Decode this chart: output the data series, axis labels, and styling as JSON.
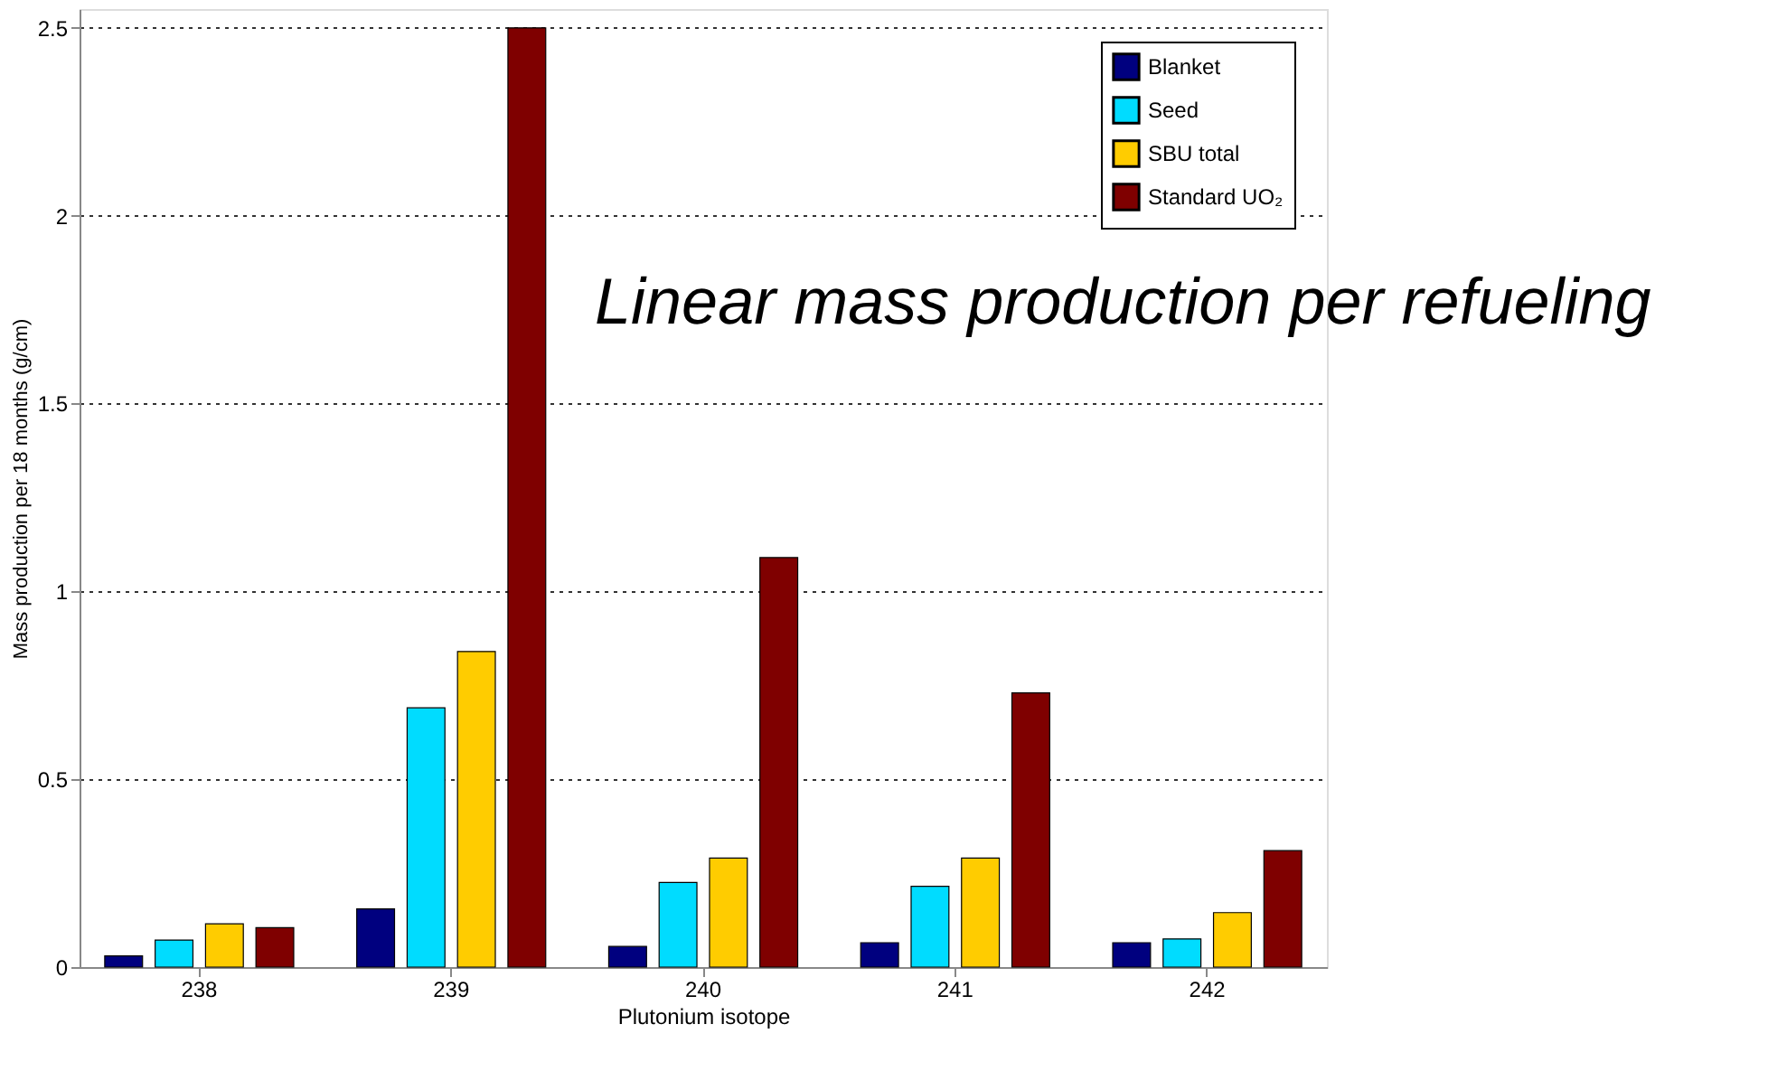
{
  "chart_data": {
    "type": "bar",
    "xlabel": "Plutonium isotope",
    "ylabel": "Mass production per 18 months (g/cm)",
    "categories": [
      "238",
      "239",
      "240",
      "241",
      "242"
    ],
    "series": [
      {
        "name": "Blanket",
        "color": "#00007f",
        "values": [
          0.03,
          0.155,
          0.055,
          0.065,
          0.065
        ]
      },
      {
        "name": "Seed",
        "color": "#00dcff",
        "values": [
          0.072,
          0.69,
          0.225,
          0.215,
          0.075
        ]
      },
      {
        "name": "SBU total",
        "color": "#ffcc00",
        "values": [
          0.115,
          0.84,
          0.29,
          0.29,
          0.145
        ]
      },
      {
        "name": "Standard UO₂",
        "color": "#7f0000",
        "values": [
          0.105,
          2.5,
          1.09,
          0.73,
          0.31
        ]
      }
    ],
    "ylim": [
      0,
      2.55
    ],
    "yticks": [
      0,
      0.5,
      1,
      1.5,
      2,
      2.5
    ],
    "grid": "y",
    "legend": "top right",
    "annotations": [
      "Linear mass production per refueling"
    ]
  }
}
